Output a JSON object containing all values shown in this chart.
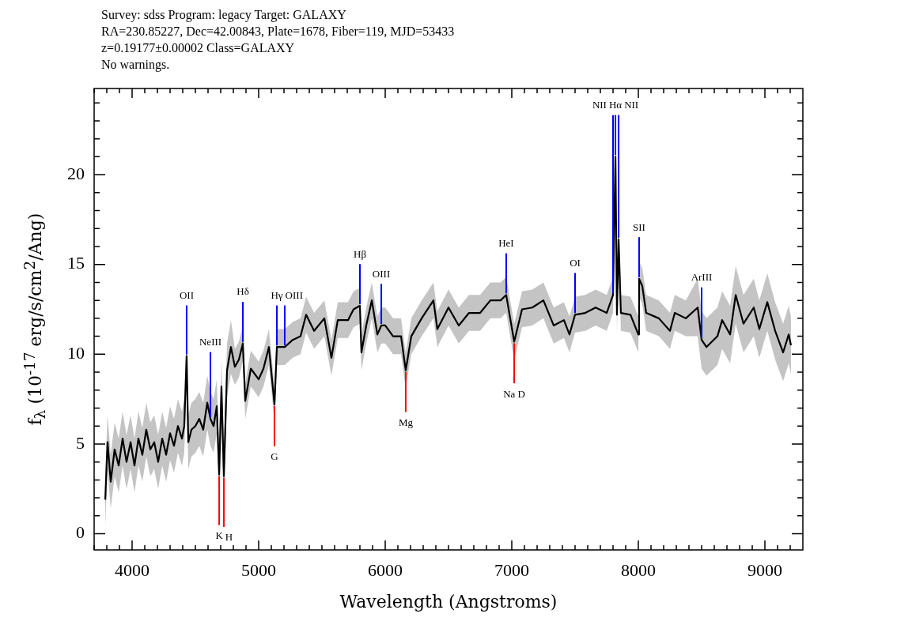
{
  "chart_data": {
    "type": "line",
    "title": "Survey: sdss Program: legacy Target: GALAXY",
    "subtitle": "RA=230.85227, Dec=42.00843, Plate=1678, Fiber=119, MJD=53433\nz=0.19177±0.00002 Class=GALAXY\nNo warnings.",
    "xlabel": "Wavelength (Angstroms)",
    "ylabel": "f$_{λ}$ (10$^{-17}$ erg/s/cm$^{2}$/Ang)",
    "xlim": [
      3700,
      9300
    ],
    "ylim": [
      -0.9,
      24.8
    ],
    "xticks": [
      {
        "value": 3700,
        "label": null
      },
      {
        "value": 3800,
        "label": null
      },
      {
        "value": 3900,
        "label": null
      },
      4000,
      {
        "value": 4100,
        "label": null
      },
      {
        "value": 4200,
        "label": null
      },
      {
        "value": 4300,
        "label": null
      },
      {
        "value": 4400,
        "label": null
      },
      {
        "value": 4500,
        "label": null
      },
      {
        "value": 4600,
        "label": null
      },
      {
        "value": 4700,
        "label": null
      },
      {
        "value": 4800,
        "label": null
      },
      {
        "value": 4900,
        "label": null
      },
      5000,
      {
        "value": 5100,
        "label": null
      },
      {
        "value": 5200,
        "label": null
      },
      {
        "value": 5300,
        "label": null
      },
      {
        "value": 5400,
        "label": null
      },
      {
        "value": 5500,
        "label": null
      },
      {
        "value": 5600,
        "label": null
      },
      {
        "value": 5700,
        "label": null
      },
      {
        "value": 5800,
        "label": null
      },
      {
        "value": 5900,
        "label": null
      },
      6000,
      {
        "value": 6100,
        "label": null
      },
      {
        "value": 6200,
        "label": null
      },
      {
        "value": 6300,
        "label": null
      },
      {
        "value": 6400,
        "label": null
      },
      {
        "value": 6500,
        "label": null
      },
      {
        "value": 6600,
        "label": null
      },
      {
        "value": 6700,
        "label": null
      },
      {
        "value": 6800,
        "label": null
      },
      {
        "value": 6900,
        "label": null
      },
      7000,
      {
        "value": 7100,
        "label": null
      },
      {
        "value": 7200,
        "label": null
      },
      {
        "value": 7300,
        "label": null
      },
      {
        "value": 7400,
        "label": null
      },
      {
        "value": 7500,
        "label": null
      },
      {
        "value": 7600,
        "label": null
      },
      {
        "value": 7700,
        "label": null
      },
      {
        "value": 7800,
        "label": null
      },
      {
        "value": 7900,
        "label": null
      },
      8000,
      {
        "value": 8100,
        "label": null
      },
      {
        "value": 8200,
        "label": null
      },
      {
        "value": 8300,
        "label": null
      },
      {
        "value": 8400,
        "label": null
      },
      {
        "value": 8500,
        "label": null
      },
      {
        "value": 8600,
        "label": null
      },
      {
        "value": 8700,
        "label": null
      },
      {
        "value": 8800,
        "label": null
      },
      {
        "value": 8900,
        "label": null
      },
      9000,
      {
        "value": 9100,
        "label": null
      },
      {
        "value": 9200,
        "label": null
      }
    ],
    "yticks": [
      0,
      {
        "value": 1,
        "label": null
      },
      {
        "value": 2,
        "label": null
      },
      {
        "value": 3,
        "label": null
      },
      {
        "value": 4,
        "label": null
      },
      5,
      {
        "value": 6,
        "label": null
      },
      {
        "value": 7,
        "label": null
      },
      {
        "value": 8,
        "label": null
      },
      {
        "value": 9,
        "label": null
      },
      10,
      {
        "value": 11,
        "label": null
      },
      {
        "value": 12,
        "label": null
      },
      {
        "value": 13,
        "label": null
      },
      {
        "value": 14,
        "label": null
      },
      15,
      {
        "value": 16,
        "label": null
      },
      {
        "value": 17,
        "label": null
      },
      {
        "value": 18,
        "label": null
      },
      {
        "value": 19,
        "label": null
      },
      20,
      {
        "value": 21,
        "label": null
      },
      {
        "value": 22,
        "label": null
      },
      {
        "value": 23,
        "label": null
      },
      {
        "value": 24,
        "label": null
      }
    ],
    "annotations": [
      {
        "text": "OII",
        "x": 4431,
        "y": 9.9
      },
      {
        "text": "NeIII",
        "x": 4619,
        "y": 6.4
      },
      {
        "text": "Hδ",
        "x": 4875,
        "y": 10.6
      },
      {
        "text": "Hγ",
        "x": 5144,
        "y": 10.4
      },
      {
        "text": "OIII",
        "x": 5206,
        "y": 10.4
      },
      {
        "text": "Hβ",
        "x": 5800,
        "y": 12.7
      },
      {
        "text": "OIII",
        "x": 5969,
        "y": 11.6
      },
      {
        "text": "HeI",
        "x": 6956,
        "y": 13.3
      },
      {
        "text": "OI",
        "x": 7500,
        "y": 12.2
      },
      {
        "text": "Hα",
        "x": 7819,
        "y": 21.0
      },
      {
        "text": "NII",
        "x": 7800,
        "y": 13.3
      },
      {
        "text": "NII",
        "x": 7844,
        "y": 16.4
      },
      {
        "text": "SII",
        "x": 8006,
        "y": 14.2
      },
      {
        "text": "ArIII",
        "x": 8500,
        "y": 10.8
      },
      {
        "text": "K",
        "x": 4688,
        "y": 3.3
      },
      {
        "text": "H",
        "x": 4725,
        "y": 3.2
      },
      {
        "text": "G",
        "x": 5125,
        "y": 7.2
      },
      {
        "text": "Mg",
        "x": 6162,
        "y": 9.1
      },
      {
        "text": "Na D",
        "x": 7019,
        "y": 10.7
      }
    ],
    "series": [
      {
        "color": "#000000",
        "x": [
          3788,
          3806,
          3831,
          3862,
          3894,
          3925,
          3956,
          3988,
          4019,
          4050,
          4081,
          4112,
          4144,
          4175,
          4206,
          4238,
          4269,
          4300,
          4331,
          4362,
          4394,
          4412,
          4431,
          4444,
          4469,
          4500,
          4531,
          4562,
          4594,
          4619,
          4644,
          4669,
          4688,
          4706,
          4725,
          4750,
          4781,
          4812,
          4844,
          4875,
          4894,
          4938,
          5000,
          5038,
          5081,
          5125,
          5144,
          5206,
          5269,
          5331,
          5375,
          5438,
          5519,
          5575,
          5625,
          5706,
          5750,
          5800,
          5812,
          5850,
          5894,
          5938,
          5969,
          6000,
          6062,
          6125,
          6162,
          6206,
          6288,
          6381,
          6412,
          6500,
          6581,
          6662,
          6750,
          6831,
          6912,
          6956,
          7019,
          7081,
          7162,
          7250,
          7331,
          7412,
          7456,
          7500,
          7581,
          7662,
          7750,
          7800,
          7819,
          7831,
          7844,
          7862,
          7938,
          8000,
          8006,
          8031,
          8062,
          8162,
          8250,
          8288,
          8375,
          8469,
          8500,
          8538,
          8625,
          8662,
          8725,
          8769,
          8831,
          8912,
          8956,
          9019,
          9081,
          9144,
          9188,
          9206
        ],
        "values": [
          1.9,
          5.1,
          2.9,
          4.7,
          3.8,
          5.3,
          4.0,
          5.1,
          3.8,
          5.3,
          4.4,
          5.8,
          4.7,
          5.1,
          4.0,
          5.3,
          4.4,
          5.6,
          4.9,
          6.0,
          5.3,
          6.0,
          9.9,
          5.1,
          5.8,
          6.0,
          6.4,
          5.8,
          7.3,
          6.4,
          6.0,
          7.1,
          3.3,
          8.2,
          3.2,
          9.1,
          10.4,
          9.3,
          9.7,
          10.6,
          7.4,
          9.2,
          8.6,
          9.2,
          10.4,
          7.2,
          10.4,
          10.4,
          10.8,
          11.0,
          12.2,
          11.3,
          12.0,
          9.8,
          11.9,
          11.9,
          12.5,
          12.7,
          10.1,
          11.6,
          13.0,
          11.1,
          11.6,
          11.6,
          11.0,
          11.0,
          9.1,
          11.0,
          12.0,
          13.0,
          11.4,
          12.6,
          11.6,
          12.3,
          12.3,
          13.0,
          13.0,
          13.3,
          10.7,
          12.5,
          12.6,
          13.0,
          11.6,
          11.9,
          11.1,
          12.2,
          12.3,
          12.6,
          12.3,
          13.3,
          21.0,
          12.2,
          16.4,
          12.3,
          12.2,
          11.1,
          14.2,
          13.8,
          12.3,
          12.0,
          11.3,
          12.3,
          12.0,
          12.6,
          10.8,
          10.4,
          11.0,
          11.9,
          11.1,
          13.3,
          11.7,
          12.6,
          11.4,
          12.9,
          11.3,
          10.1,
          11.1,
          10.5
        ],
        "lower": [
          0.4,
          3.6,
          1.4,
          3.2,
          2.3,
          3.8,
          2.5,
          3.6,
          2.3,
          3.8,
          2.9,
          4.3,
          3.2,
          3.6,
          2.5,
          3.8,
          2.9,
          4.1,
          3.4,
          4.5,
          3.8,
          4.5,
          8.4,
          3.6,
          4.3,
          4.5,
          4.9,
          4.3,
          5.8,
          4.9,
          4.5,
          5.6,
          1.8,
          6.7,
          1.7,
          7.6,
          8.9,
          8.3,
          8.7,
          9.6,
          6.4,
          8.2,
          7.6,
          8.2,
          9.4,
          6.2,
          9.4,
          9.4,
          9.8,
          10.0,
          11.2,
          10.3,
          11.0,
          8.8,
          10.9,
          10.9,
          11.5,
          11.7,
          9.1,
          10.6,
          12.0,
          10.1,
          10.6,
          10.6,
          10.0,
          10.0,
          8.1,
          10.0,
          11.0,
          12.0,
          10.4,
          11.6,
          10.6,
          11.3,
          11.3,
          12.0,
          12.0,
          12.3,
          9.7,
          11.5,
          11.6,
          12.0,
          10.6,
          10.9,
          10.1,
          11.2,
          11.3,
          11.6,
          11.3,
          12.3,
          20.0,
          11.2,
          15.4,
          11.3,
          11.2,
          10.1,
          13.2,
          12.8,
          11.3,
          11.0,
          10.3,
          11.3,
          11.0,
          11.0,
          9.2,
          8.8,
          9.4,
          10.3,
          9.5,
          11.7,
          10.1,
          11.0,
          9.8,
          11.3,
          9.7,
          8.5,
          9.5,
          8.9
        ],
        "upper": [
          3.4,
          6.6,
          4.4,
          6.2,
          5.3,
          6.8,
          5.5,
          6.6,
          5.3,
          6.8,
          5.9,
          7.3,
          6.2,
          6.6,
          5.5,
          6.8,
          5.9,
          7.1,
          6.4,
          7.5,
          6.8,
          7.5,
          11.4,
          6.6,
          7.3,
          7.5,
          7.9,
          7.3,
          8.8,
          7.9,
          7.5,
          8.6,
          4.8,
          9.7,
          4.7,
          10.6,
          11.9,
          10.3,
          10.7,
          11.6,
          8.4,
          10.2,
          9.6,
          10.2,
          11.4,
          8.2,
          11.4,
          11.4,
          11.8,
          12.0,
          13.2,
          12.3,
          13.0,
          10.8,
          12.9,
          12.9,
          13.5,
          13.7,
          11.1,
          12.6,
          14.0,
          12.1,
          12.6,
          12.6,
          12.0,
          12.0,
          10.1,
          12.0,
          13.0,
          14.0,
          12.4,
          13.6,
          12.6,
          13.3,
          13.3,
          14.0,
          14.0,
          14.3,
          11.7,
          13.5,
          13.6,
          14.0,
          12.6,
          12.9,
          12.1,
          13.2,
          13.3,
          13.6,
          13.3,
          14.3,
          22.0,
          13.2,
          17.4,
          13.3,
          13.2,
          12.1,
          15.2,
          14.8,
          13.3,
          13.0,
          12.3,
          13.3,
          13.0,
          14.2,
          12.4,
          12.0,
          12.6,
          13.5,
          12.7,
          14.9,
          13.3,
          14.2,
          13.0,
          14.5,
          12.9,
          11.7,
          12.7,
          12.1
        ]
      }
    ]
  }
}
